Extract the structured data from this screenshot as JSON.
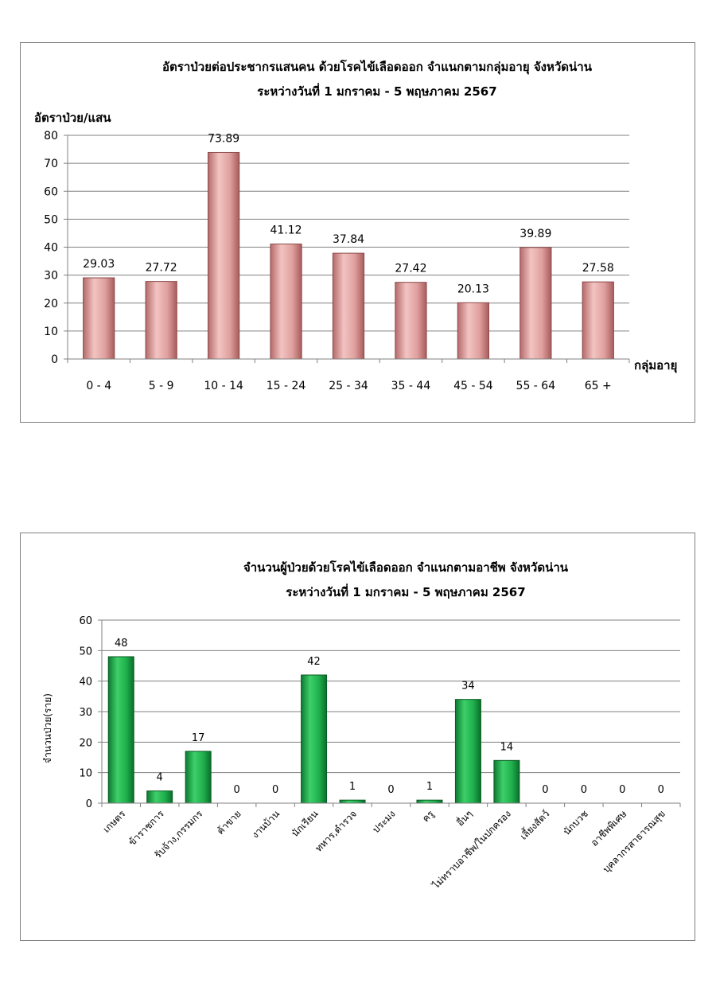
{
  "chart_data": [
    {
      "type": "bar",
      "title": "อัตราป่วยต่อประชากรแสนคน ด้วยโรคไข้เลือดออก จำแนกตามกลุ่มอายุ จังหวัดน่าน",
      "subtitle": "ระหว่างวันที่  1 มกราคม - 5 พฤษภาคม 2567",
      "ylabel": "อัตราป่วย/แสน",
      "xlabel": "กลุ่มอายุ",
      "ylim": [
        0,
        80
      ],
      "yticks": [
        0,
        10,
        20,
        30,
        40,
        50,
        60,
        70,
        80
      ],
      "categories": [
        "0 - 4",
        "5 - 9",
        "10 - 14",
        "15 - 24",
        "25 - 34",
        "35 - 44",
        "45 - 54",
        "55 - 64",
        "65 +"
      ],
      "values": [
        29.03,
        27.72,
        73.89,
        41.12,
        37.84,
        27.42,
        20.13,
        39.89,
        27.58
      ],
      "value_labels": [
        "29.03",
        "27.72",
        "73.89",
        "41.12",
        "37.84",
        "27.42",
        "20.13",
        "39.89",
        "27.58"
      ],
      "grid": true,
      "bar_color": "#d99694"
    },
    {
      "type": "bar",
      "title": "จำนวนผู้ป่วยด้วยโรคไข้เลือดออก จำแนกตามอาชีพ จังหวัดน่าน",
      "subtitle": "ระหว่างวันที่  1 มกราคม - 5 พฤษภาคม 2567",
      "ylabel": "จำนวนป่วย(ราย)",
      "xlabel": "",
      "ylim": [
        0,
        60
      ],
      "yticks": [
        0,
        10,
        20,
        30,
        40,
        50,
        60
      ],
      "categories": [
        "เกษตร",
        "ข้าราชการ",
        "รับจ้าง,กรรมกร",
        "ค้าขาย",
        "งานบ้าน",
        "นักเรียน",
        "ทหาร,ตำรวจ",
        "ประมง",
        "ครู",
        "อื่นๆ",
        "ไม่ทราบอาชีพ/ในปกครอง",
        "เลี้ยงสัตว์",
        "นักบวช",
        "อาชีพพิเศษ",
        "บุคลากรสาธารณสุข"
      ],
      "values": [
        48,
        4,
        17,
        0,
        0,
        42,
        1,
        0,
        1,
        34,
        14,
        0,
        0,
        0,
        0
      ],
      "value_labels": [
        "48",
        "4",
        "17",
        "0",
        "0",
        "42",
        "1",
        "0",
        "1",
        "34",
        "14",
        "0",
        "0",
        "0",
        "0"
      ],
      "grid": true,
      "bar_color": "#1fa84a"
    }
  ]
}
